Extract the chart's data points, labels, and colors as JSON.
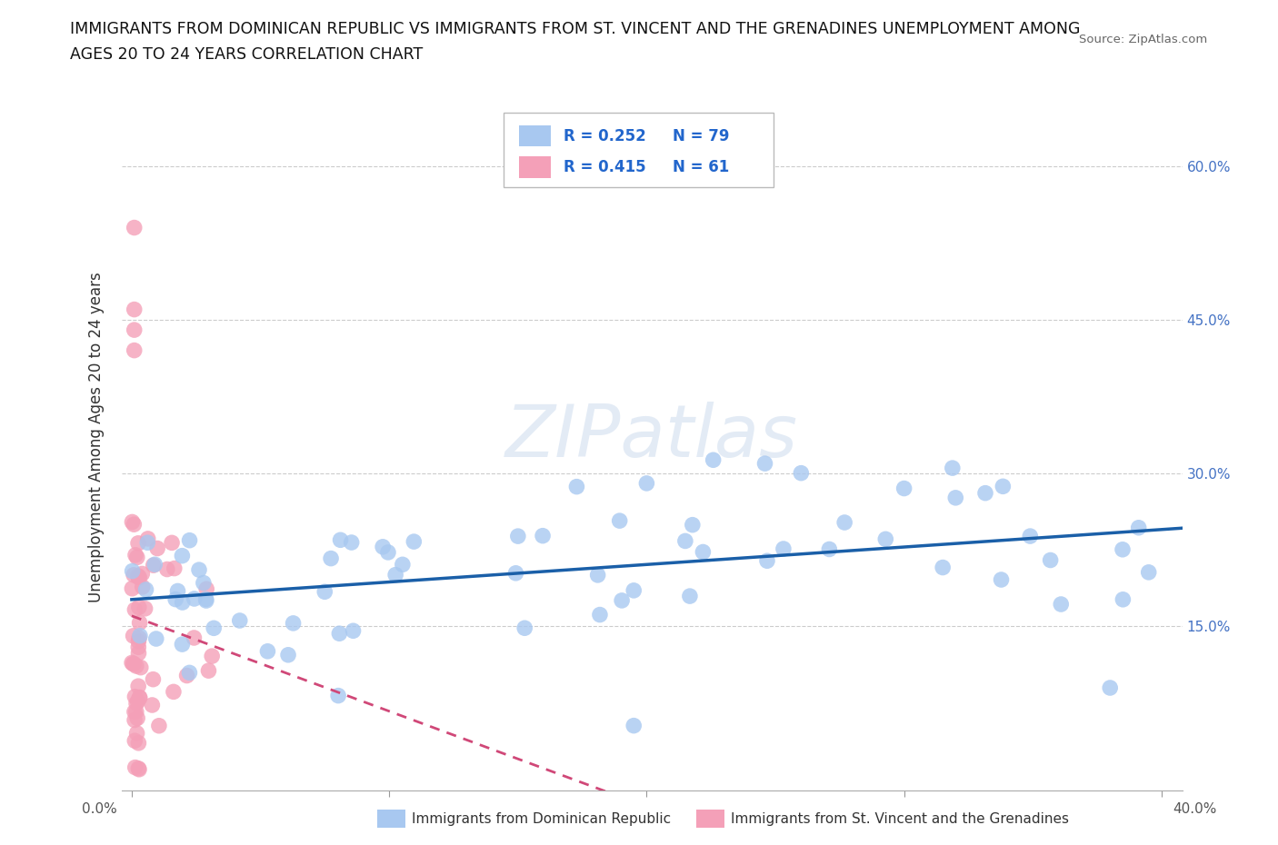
{
  "title_line1": "IMMIGRANTS FROM DOMINICAN REPUBLIC VS IMMIGRANTS FROM ST. VINCENT AND THE GRENADINES UNEMPLOYMENT AMONG",
  "title_line2": "AGES 20 TO 24 YEARS CORRELATION CHART",
  "source": "Source: ZipAtlas.com",
  "ylabel": "Unemployment Among Ages 20 to 24 years",
  "watermark": "ZIPatlas",
  "legend_label1": "Immigrants from Dominican Republic",
  "legend_label2": "Immigrants from St. Vincent and the Grenadines",
  "R1": 0.252,
  "N1": 79,
  "R2": 0.415,
  "N2": 61,
  "color1": "#a8c8f0",
  "color2": "#f4a0b8",
  "trend_color1": "#1a5fa8",
  "trend_color2": "#d04878",
  "xlim": [
    -0.004,
    0.408
  ],
  "ylim": [
    -0.01,
    0.68
  ],
  "yticks": [
    0.0,
    0.15,
    0.3,
    0.45,
    0.6
  ],
  "ytick_labels": [
    "",
    "15.0%",
    "30.0%",
    "45.0%",
    "60.0%"
  ],
  "grid_color": "#cccccc",
  "background": "#ffffff"
}
